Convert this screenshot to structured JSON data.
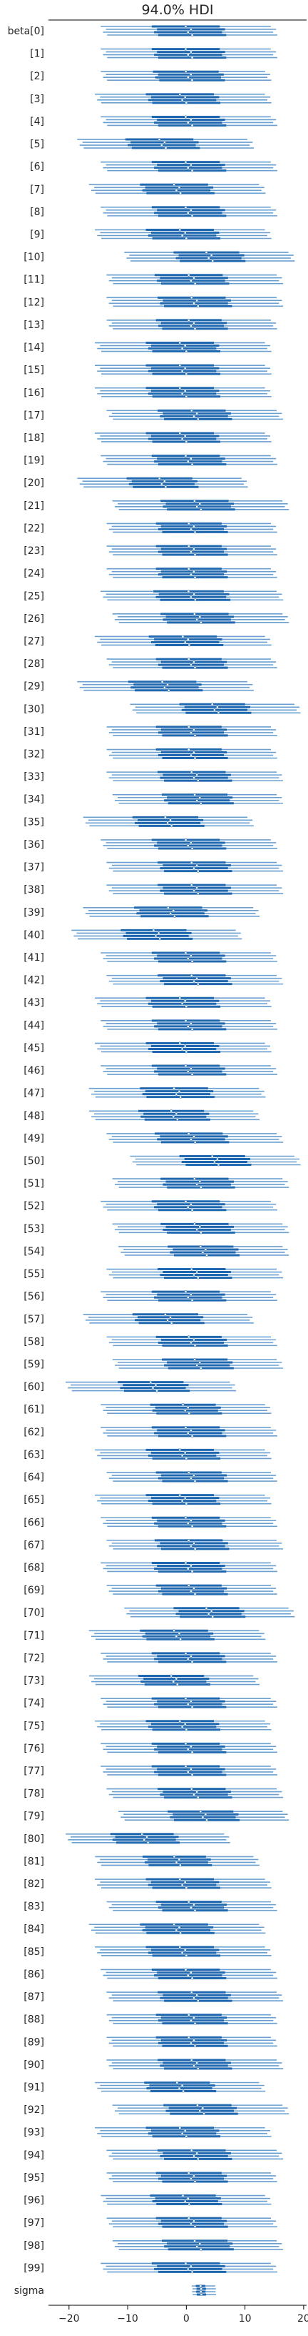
{
  "chart_data": {
    "type": "forest",
    "title": "94.0% HDI",
    "xlabel": "",
    "ylabel": "",
    "xlim": [
      -23.5,
      20.5
    ],
    "xticks": [
      -20,
      -10,
      0,
      10,
      20
    ],
    "grid": false,
    "legend": "none",
    "chains": 4,
    "colors": {
      "hdi": "#6a9fd0",
      "iqr": "#1f68b0",
      "median": "#ffffff",
      "spine": "#000000"
    },
    "parameters": [
      {
        "label": "beta[0]",
        "median": 0.5,
        "hdi": [
          -14,
          15
        ]
      },
      {
        "label": "[1]",
        "median": 0.5,
        "hdi": [
          -14,
          15
        ]
      },
      {
        "label": "[2]",
        "median": 0.5,
        "hdi": [
          -14,
          14
        ]
      },
      {
        "label": "[3]",
        "median": -0.5,
        "hdi": [
          -15,
          14
        ]
      },
      {
        "label": "[4]",
        "median": 0.5,
        "hdi": [
          -14,
          15
        ]
      },
      {
        "label": "[5]",
        "median": -4,
        "hdi": [
          -18,
          11
        ]
      },
      {
        "label": "[6]",
        "median": 0.5,
        "hdi": [
          -14,
          15
        ]
      },
      {
        "label": "[7]",
        "median": -1.5,
        "hdi": [
          -16,
          13
        ]
      },
      {
        "label": "[8]",
        "median": 0.5,
        "hdi": [
          -14,
          15
        ]
      },
      {
        "label": "[9]",
        "median": -0.5,
        "hdi": [
          -15,
          14
        ]
      },
      {
        "label": "[10]",
        "median": 4,
        "hdi": [
          -10,
          18
        ]
      },
      {
        "label": "[11]",
        "median": 1,
        "hdi": [
          -13,
          16
        ]
      },
      {
        "label": "[12]",
        "median": 1.5,
        "hdi": [
          -13,
          16
        ]
      },
      {
        "label": "[13]",
        "median": 1,
        "hdi": [
          -13,
          15
        ]
      },
      {
        "label": "[14]",
        "median": -0.5,
        "hdi": [
          -15,
          14
        ]
      },
      {
        "label": "[15]",
        "median": -0.5,
        "hdi": [
          -15,
          14
        ]
      },
      {
        "label": "[16]",
        "median": -0.5,
        "hdi": [
          -15,
          14
        ]
      },
      {
        "label": "[17]",
        "median": 1.5,
        "hdi": [
          -13,
          16
        ]
      },
      {
        "label": "[18]",
        "median": -0.5,
        "hdi": [
          -15,
          14
        ]
      },
      {
        "label": "[19]",
        "median": 0.5,
        "hdi": [
          -14,
          15
        ]
      },
      {
        "label": "[20]",
        "median": -4,
        "hdi": [
          -18,
          10
        ]
      },
      {
        "label": "[21]",
        "median": 2,
        "hdi": [
          -12,
          17
        ]
      },
      {
        "label": "[22]",
        "median": 1,
        "hdi": [
          -13,
          15
        ]
      },
      {
        "label": "[23]",
        "median": 1,
        "hdi": [
          -13,
          15
        ]
      },
      {
        "label": "[24]",
        "median": 1,
        "hdi": [
          -13,
          15
        ]
      },
      {
        "label": "[25]",
        "median": 1,
        "hdi": [
          -14,
          16
        ]
      },
      {
        "label": "[26]",
        "median": 2,
        "hdi": [
          -12,
          17
        ]
      },
      {
        "label": "[27]",
        "median": 0,
        "hdi": [
          -15,
          14
        ]
      },
      {
        "label": "[28]",
        "median": 1,
        "hdi": [
          -13,
          15
        ]
      },
      {
        "label": "[29]",
        "median": -3.5,
        "hdi": [
          -18,
          11
        ]
      },
      {
        "label": "[30]",
        "median": 5,
        "hdi": [
          -9,
          19
        ]
      },
      {
        "label": "[31]",
        "median": 1,
        "hdi": [
          -13,
          15
        ]
      },
      {
        "label": "[32]",
        "median": 1,
        "hdi": [
          -13,
          15
        ]
      },
      {
        "label": "[33]",
        "median": 1.5,
        "hdi": [
          -13,
          16
        ]
      },
      {
        "label": "[34]",
        "median": 2,
        "hdi": [
          -12,
          16
        ]
      },
      {
        "label": "[35]",
        "median": -3,
        "hdi": [
          -17,
          11
        ]
      },
      {
        "label": "[36]",
        "median": 0.5,
        "hdi": [
          -14,
          15
        ]
      },
      {
        "label": "[37]",
        "median": 1.5,
        "hdi": [
          -13,
          16
        ]
      },
      {
        "label": "[38]",
        "median": 1.5,
        "hdi": [
          -13,
          16
        ]
      },
      {
        "label": "[39]",
        "median": -2.5,
        "hdi": [
          -17,
          12
        ]
      },
      {
        "label": "[40]",
        "median": -5,
        "hdi": [
          -19,
          9
        ]
      },
      {
        "label": "[41]",
        "median": 0.5,
        "hdi": [
          -14,
          15
        ]
      },
      {
        "label": "[42]",
        "median": 1.5,
        "hdi": [
          -13,
          16
        ]
      },
      {
        "label": "[43]",
        "median": -0.5,
        "hdi": [
          -15,
          14
        ]
      },
      {
        "label": "[44]",
        "median": 0.5,
        "hdi": [
          -14,
          15
        ]
      },
      {
        "label": "[45]",
        "median": -0.5,
        "hdi": [
          -15,
          14
        ]
      },
      {
        "label": "[46]",
        "median": 0.5,
        "hdi": [
          -14,
          15
        ]
      },
      {
        "label": "[47]",
        "median": -1.5,
        "hdi": [
          -16,
          13
        ]
      },
      {
        "label": "[48]",
        "median": -2,
        "hdi": [
          -16,
          12
        ]
      },
      {
        "label": "[49]",
        "median": 1,
        "hdi": [
          -13,
          16
        ]
      },
      {
        "label": "[50]",
        "median": 5,
        "hdi": [
          -9,
          19
        ]
      },
      {
        "label": "[51]",
        "median": 2,
        "hdi": [
          -12,
          17
        ]
      },
      {
        "label": "[52]",
        "median": 0.5,
        "hdi": [
          -14,
          15
        ]
      },
      {
        "label": "[53]",
        "median": 2,
        "hdi": [
          -12,
          17
        ]
      },
      {
        "label": "[54]",
        "median": 3,
        "hdi": [
          -11,
          17
        ]
      },
      {
        "label": "[55]",
        "median": 1.5,
        "hdi": [
          -13,
          16
        ]
      },
      {
        "label": "[56]",
        "median": 0.5,
        "hdi": [
          -14,
          15
        ]
      },
      {
        "label": "[57]",
        "median": -3,
        "hdi": [
          -17,
          11
        ]
      },
      {
        "label": "[58]",
        "median": 1,
        "hdi": [
          -13,
          15
        ]
      },
      {
        "label": "[59]",
        "median": 2,
        "hdi": [
          -12,
          16
        ]
      },
      {
        "label": "[60]",
        "median": -5.5,
        "hdi": [
          -20,
          8
        ]
      },
      {
        "label": "[61]",
        "median": 0,
        "hdi": [
          -14,
          14
        ]
      },
      {
        "label": "[62]",
        "median": 0.5,
        "hdi": [
          -14,
          15
        ]
      },
      {
        "label": "[63]",
        "median": -0.5,
        "hdi": [
          -15,
          14
        ]
      },
      {
        "label": "[64]",
        "median": 1,
        "hdi": [
          -13,
          15
        ]
      },
      {
        "label": "[65]",
        "median": -0.5,
        "hdi": [
          -15,
          14
        ]
      },
      {
        "label": "[66]",
        "median": 0.5,
        "hdi": [
          -14,
          15
        ]
      },
      {
        "label": "[67]",
        "median": 1,
        "hdi": [
          -13,
          16
        ]
      },
      {
        "label": "[68]",
        "median": 0.5,
        "hdi": [
          -14,
          15
        ]
      },
      {
        "label": "[69]",
        "median": 1,
        "hdi": [
          -13,
          15
        ]
      },
      {
        "label": "[70]",
        "median": 4,
        "hdi": [
          -10,
          18
        ]
      },
      {
        "label": "[71]",
        "median": -1.5,
        "hdi": [
          -16,
          13
        ]
      },
      {
        "label": "[72]",
        "median": 0.5,
        "hdi": [
          -14,
          15
        ]
      },
      {
        "label": "[73]",
        "median": -2,
        "hdi": [
          -16,
          12
        ]
      },
      {
        "label": "[74]",
        "median": 0.5,
        "hdi": [
          -14,
          15
        ]
      },
      {
        "label": "[75]",
        "median": -0.5,
        "hdi": [
          -15,
          14
        ]
      },
      {
        "label": "[76]",
        "median": 0.5,
        "hdi": [
          -14,
          15
        ]
      },
      {
        "label": "[77]",
        "median": 0.5,
        "hdi": [
          -14,
          15
        ]
      },
      {
        "label": "[78]",
        "median": 1.5,
        "hdi": [
          -13,
          16
        ]
      },
      {
        "label": "[79]",
        "median": 3,
        "hdi": [
          -11,
          17
        ]
      },
      {
        "label": "[80]",
        "median": -7,
        "hdi": [
          -20,
          7
        ]
      },
      {
        "label": "[81]",
        "median": -1.5,
        "hdi": [
          -15,
          12
        ]
      },
      {
        "label": "[82]",
        "median": -0.5,
        "hdi": [
          -15,
          14
        ]
      },
      {
        "label": "[83]",
        "median": 1,
        "hdi": [
          -13,
          15
        ]
      },
      {
        "label": "[84]",
        "median": -1.5,
        "hdi": [
          -16,
          13
        ]
      },
      {
        "label": "[85]",
        "median": -0.5,
        "hdi": [
          -15,
          14
        ]
      },
      {
        "label": "[86]",
        "median": 0.5,
        "hdi": [
          -14,
          15
        ]
      },
      {
        "label": "[87]",
        "median": 1.5,
        "hdi": [
          -13,
          16
        ]
      },
      {
        "label": "[88]",
        "median": 1,
        "hdi": [
          -13,
          15
        ]
      },
      {
        "label": "[89]",
        "median": 1,
        "hdi": [
          -13,
          15
        ]
      },
      {
        "label": "[90]",
        "median": 1.5,
        "hdi": [
          -13,
          16
        ]
      },
      {
        "label": "[91]",
        "median": -1,
        "hdi": [
          -15,
          13
        ]
      },
      {
        "label": "[92]",
        "median": 2.5,
        "hdi": [
          -12,
          17
        ]
      },
      {
        "label": "[93]",
        "median": -0.5,
        "hdi": [
          -15,
          14
        ]
      },
      {
        "label": "[94]",
        "median": 1.5,
        "hdi": [
          -13,
          16
        ]
      },
      {
        "label": "[95]",
        "median": 1,
        "hdi": [
          -13,
          15
        ]
      },
      {
        "label": "[96]",
        "median": 0,
        "hdi": [
          -14,
          14
        ]
      },
      {
        "label": "[97]",
        "median": 1,
        "hdi": [
          -13,
          15
        ]
      },
      {
        "label": "[98]",
        "median": 2,
        "hdi": [
          -12,
          16
        ]
      },
      {
        "label": "[99]",
        "median": 0.5,
        "hdi": [
          -14,
          15
        ]
      },
      {
        "label": "sigma",
        "median": 2.5,
        "hdi": [
          1,
          5
        ]
      }
    ]
  }
}
